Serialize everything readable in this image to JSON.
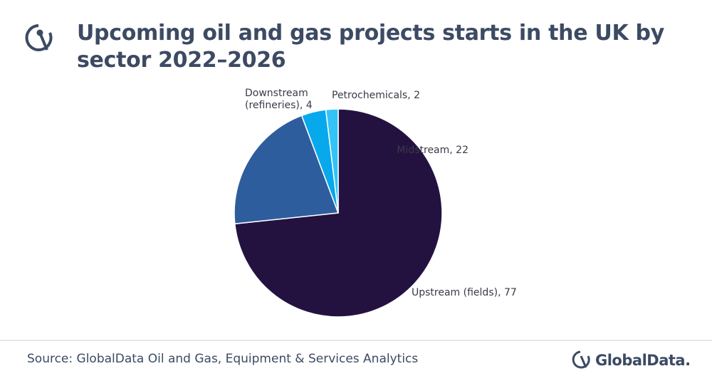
{
  "chart_data": {
    "type": "pie",
    "title": "Upcoming oil and gas projects starts in the UK by sector 2022–2026",
    "values": [
      77,
      22,
      4,
      2
    ],
    "value_labels": [
      "Upstream (fields), 77",
      "Midstream, 22",
      "Downstream (refineries), 4",
      "Petrochemicals, 2"
    ],
    "colors": [
      "#231240",
      "#2e5d9e",
      "#08a8ec",
      "#33c4f5"
    ]
  },
  "source": "Source: GlobalData Oil and Gas, Equipment & Services Analytics",
  "logo_text": "GlobalData."
}
